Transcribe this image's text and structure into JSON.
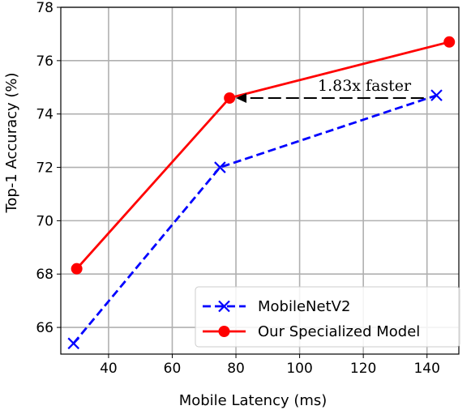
{
  "chart_data": {
    "type": "line",
    "title": "",
    "xlabel": "Mobile Latency (ms)",
    "ylabel": "Top-1 Accuracy (%)",
    "xlim": [
      25,
      150
    ],
    "ylim": [
      65,
      78
    ],
    "xticks": [
      40,
      60,
      80,
      100,
      120,
      140
    ],
    "yticks": [
      66,
      68,
      70,
      72,
      74,
      76,
      78
    ],
    "grid": true,
    "legend_position": "bottom-right",
    "series": [
      {
        "name": "MobileNetV2",
        "color": "#0000ff",
        "line_style": "dashed",
        "marker": "x",
        "x": [
          29,
          75,
          143
        ],
        "y": [
          65.4,
          72.0,
          74.7
        ]
      },
      {
        "name": "Our Specialized Model",
        "color": "#ff0000",
        "line_style": "solid",
        "marker": "circle",
        "x": [
          30,
          78,
          147
        ],
        "y": [
          68.2,
          74.6,
          76.7
        ]
      }
    ],
    "annotations": [
      {
        "text": "1.83x faster",
        "arrow_from": {
          "x": 139,
          "y": 74.6
        },
        "arrow_to": {
          "x": 80,
          "y": 74.6
        }
      }
    ]
  }
}
